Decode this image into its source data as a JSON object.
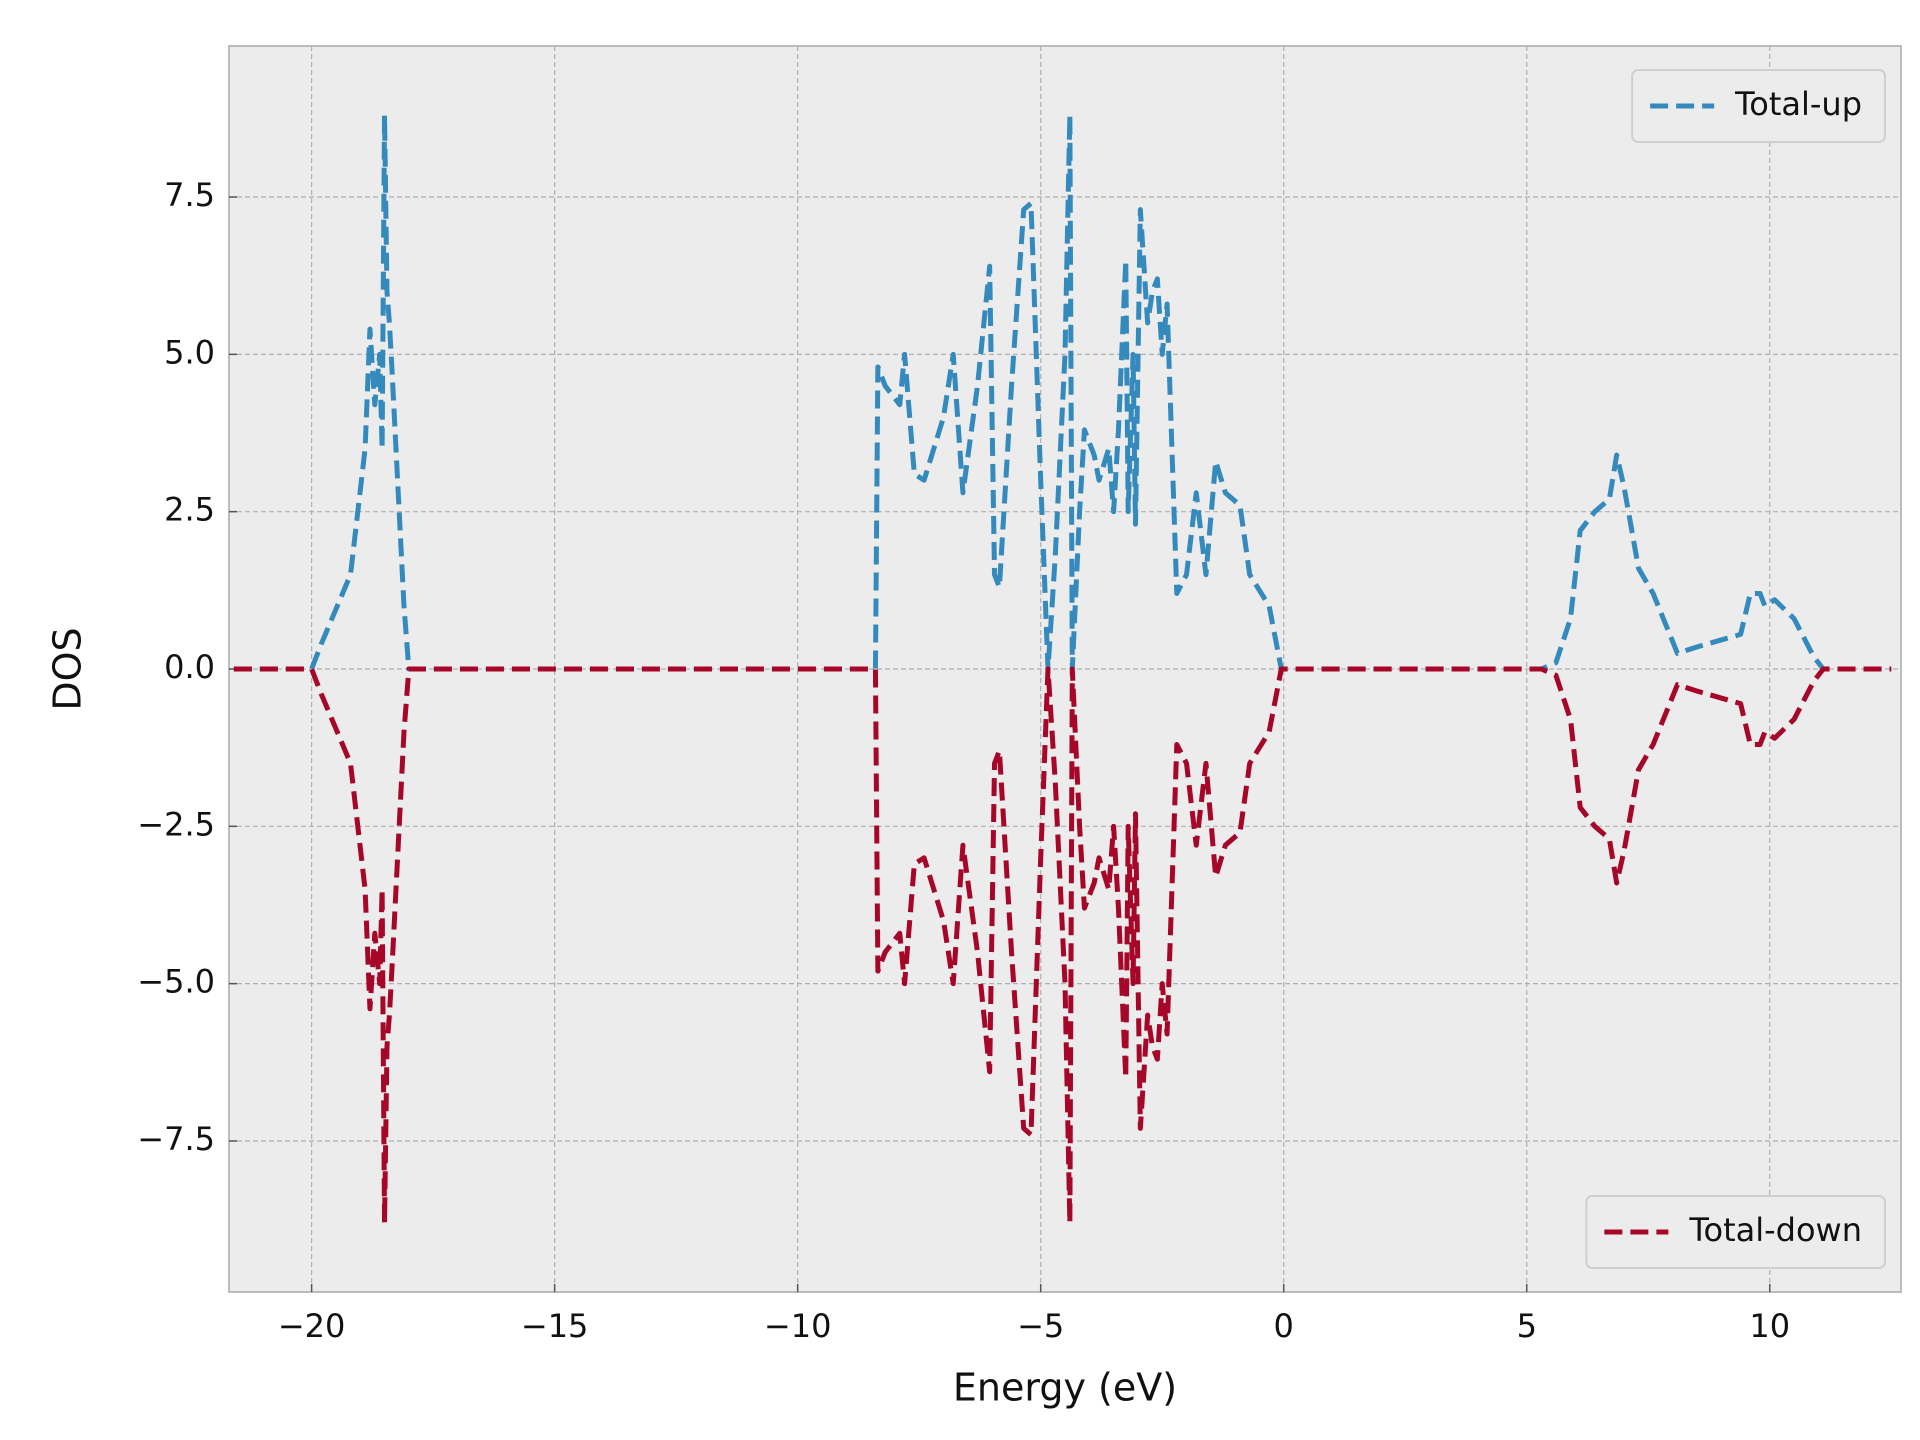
{
  "chart_data": {
    "type": "line",
    "xlabel": "Energy (eV)",
    "ylabel": "DOS",
    "xlim": [
      -21.7,
      12.7
    ],
    "ylim": [
      -9.9,
      9.9
    ],
    "xticks": [
      {
        "value": -20,
        "label": "−20"
      },
      {
        "value": -15,
        "label": "−15"
      },
      {
        "value": -10,
        "label": "−10"
      },
      {
        "value": -5,
        "label": "−5"
      },
      0,
      5,
      10
    ],
    "yticks": [
      {
        "value": -7.5,
        "label": "−7.5"
      },
      {
        "value": -5,
        "label": "−5.0"
      },
      {
        "value": -2.5,
        "label": "−2.5"
      },
      {
        "value": 0,
        "label": "0.0"
      },
      2.5,
      {
        "value": 5,
        "label": "5.0"
      },
      7.5
    ],
    "grid": true,
    "x": [
      -21.6,
      -20.0,
      -19.8,
      -19.2,
      -18.9,
      -18.8,
      -18.7,
      -18.6,
      -18.55,
      -18.5,
      -18.45,
      -18.4,
      -18.35,
      -18.1,
      -18.0,
      -8.4,
      -8.35,
      -8.2,
      -7.9,
      -7.8,
      -7.6,
      -7.4,
      -7.0,
      -6.8,
      -6.6,
      -6.3,
      -6.05,
      -5.95,
      -5.85,
      -5.6,
      -5.35,
      -5.2,
      -5.0,
      -4.85,
      -4.7,
      -4.5,
      -4.4,
      -4.35,
      -4.2,
      -4.1,
      -3.9,
      -3.8,
      -3.6,
      -3.5,
      -3.4,
      -3.25,
      -3.2,
      -3.1,
      -3.05,
      -2.95,
      -2.8,
      -2.7,
      -2.6,
      -2.5,
      -2.4,
      -2.2,
      -2.0,
      -1.8,
      -1.6,
      -1.4,
      -1.2,
      -0.9,
      -0.7,
      -0.3,
      -0.05,
      5.3,
      5.6,
      5.9,
      6.1,
      6.4,
      6.7,
      6.85,
      7.0,
      7.3,
      7.6,
      8.1,
      8.5,
      9.4,
      9.6,
      9.8,
      9.9,
      10.1,
      10.5,
      10.9,
      11.1,
      12.5
    ],
    "series": [
      {
        "name": "Total-up",
        "color": "#348abd",
        "legend_loc": "upper right",
        "values": [
          0,
          0,
          0.4,
          1.5,
          3.5,
          5.4,
          4.2,
          5.0,
          3.5,
          8.8,
          6.0,
          5.5,
          4.8,
          1.0,
          0,
          0,
          4.8,
          4.5,
          4.2,
          5.0,
          3.1,
          3.0,
          4.0,
          5.0,
          2.8,
          4.5,
          6.4,
          1.5,
          1.3,
          4.5,
          7.3,
          7.4,
          3.0,
          0,
          1.8,
          5.0,
          8.8,
          0,
          2.5,
          3.8,
          3.4,
          3.0,
          3.5,
          2.5,
          3.8,
          6.5,
          2.5,
          5.0,
          2.3,
          7.3,
          5.5,
          6.0,
          6.2,
          5.0,
          5.8,
          1.2,
          1.5,
          2.8,
          1.5,
          3.3,
          2.8,
          2.6,
          1.5,
          1.0,
          0,
          0,
          0.1,
          0.8,
          2.2,
          2.5,
          2.7,
          3.4,
          2.9,
          1.6,
          1.2,
          0.25,
          0.35,
          0.55,
          1.2,
          1.2,
          1.0,
          1.1,
          0.8,
          0.2,
          0,
          0
        ]
      },
      {
        "name": "Total-down",
        "color": "#a60628",
        "legend_loc": "lower right",
        "values": [
          0,
          0,
          -0.4,
          -1.5,
          -3.5,
          -5.4,
          -4.2,
          -5.0,
          -3.5,
          -8.8,
          -6.0,
          -5.5,
          -4.8,
          -1.0,
          0,
          0,
          -4.8,
          -4.5,
          -4.2,
          -5.0,
          -3.1,
          -3.0,
          -4.0,
          -5.0,
          -2.8,
          -4.5,
          -6.4,
          -1.5,
          -1.3,
          -4.5,
          -7.3,
          -7.4,
          -3.0,
          0,
          -1.8,
          -5.0,
          -8.8,
          0,
          -2.5,
          -3.8,
          -3.4,
          -3.0,
          -3.5,
          -2.5,
          -3.8,
          -6.5,
          -2.5,
          -5.0,
          -2.3,
          -7.3,
          -5.5,
          -6.0,
          -6.2,
          -5.0,
          -5.8,
          -1.2,
          -1.5,
          -2.8,
          -1.5,
          -3.3,
          -2.8,
          -2.6,
          -1.5,
          -1.0,
          0,
          0,
          -0.1,
          -0.8,
          -2.2,
          -2.5,
          -2.7,
          -3.4,
          -2.9,
          -1.6,
          -1.2,
          -0.25,
          -0.35,
          -0.55,
          -1.2,
          -1.2,
          -1.0,
          -1.1,
          -0.8,
          -0.2,
          0,
          0
        ]
      }
    ]
  }
}
